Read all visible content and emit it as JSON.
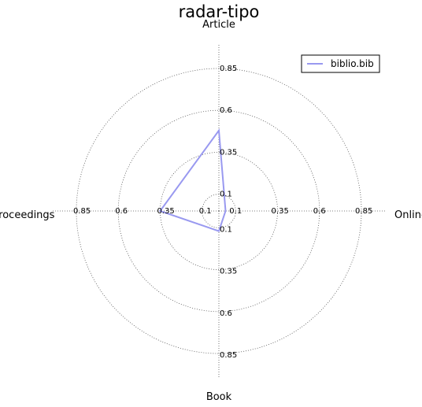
{
  "chart_data": {
    "type": "radar",
    "title": "radar-tipo",
    "axes": [
      "Article",
      "Online",
      "Book",
      "Proceedings"
    ],
    "tick_values": [
      0.1,
      0.35,
      0.6,
      0.85
    ],
    "tick_labels": [
      "0.1",
      "0.35",
      "0.6",
      "0.85"
    ],
    "rmax": 1.0,
    "grid": true,
    "legend": "top-right",
    "series": [
      {
        "name": "biblio.bib",
        "values": [
          0.48,
          0.04,
          0.12,
          0.35
        ],
        "color": "#9999f0"
      }
    ]
  }
}
